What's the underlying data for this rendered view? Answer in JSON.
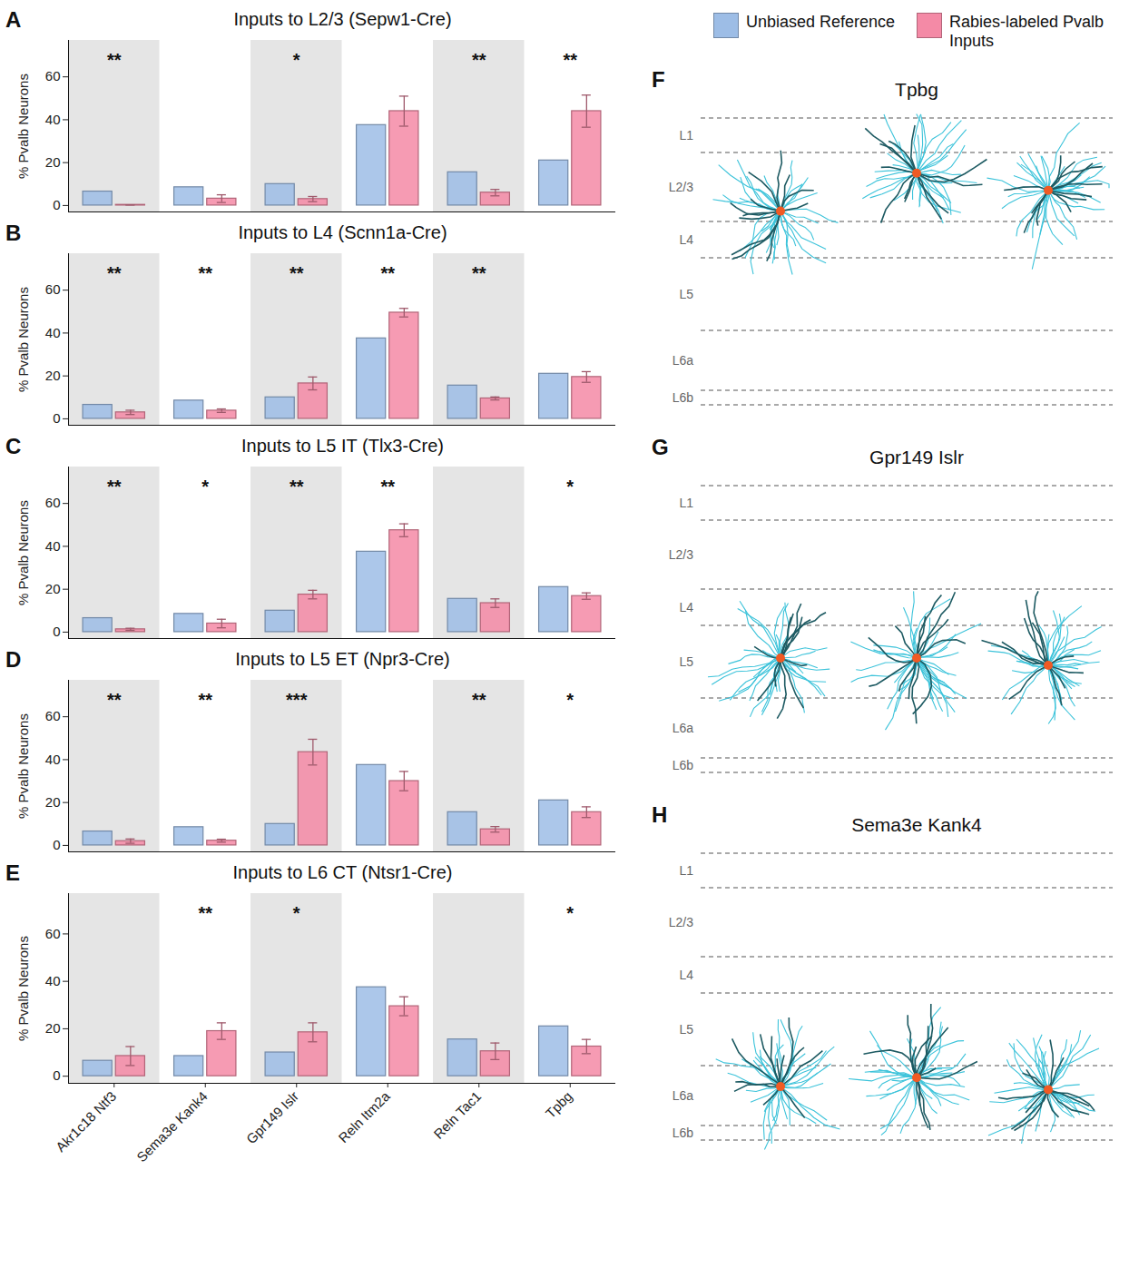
{
  "chart_data": [
    {
      "type": "bar",
      "panel": "A",
      "title": "Inputs to L2/3 (Sepw1-Cre)",
      "y_label": "% Pvalb Neurons",
      "categories": [
        "Akr1c18 Ntf3",
        "Sema3e Kank4",
        "Gpr149 Islr",
        "Reln Itm2a",
        "Reln Tac1",
        "Tpbg"
      ],
      "series": [
        {
          "name": "Unbiased Reference",
          "color": "#9dbde6",
          "values": [
            6.5,
            8.5,
            10,
            37.5,
            15.5,
            21
          ]
        },
        {
          "name": "Rabies-labeled Pvalb Inputs",
          "color": "#f48aa6",
          "values": [
            0.3,
            3.2,
            3,
            44,
            6,
            44
          ],
          "errors": [
            0,
            1.8,
            1.2,
            7,
            1.5,
            7.5
          ]
        }
      ],
      "annotations": [
        "**",
        null,
        "*",
        null,
        "**",
        "**"
      ],
      "ylim": [
        -3,
        77
      ],
      "yticks": [
        0,
        20,
        40,
        60
      ],
      "tick_labels": "y"
    },
    {
      "type": "bar",
      "panel": "B",
      "title": "Inputs to L4 (Scnn1a-Cre)",
      "y_label": "% Pvalb Neurons",
      "categories": [
        "Akr1c18 Ntf3",
        "Sema3e Kank4",
        "Gpr149 Islr",
        "Reln Itm2a",
        "Reln Tac1",
        "Tpbg"
      ],
      "series": [
        {
          "name": "Unbiased Reference",
          "color": "#9dbde6",
          "values": [
            6.5,
            8.5,
            10,
            37.5,
            15.5,
            21
          ]
        },
        {
          "name": "Rabies-labeled Pvalb Inputs",
          "color": "#f48aa6",
          "values": [
            3,
            3.8,
            16.5,
            49.5,
            9.5,
            19.5
          ],
          "errors": [
            1,
            0.8,
            3,
            2,
            0.7,
            2.5
          ]
        }
      ],
      "annotations": [
        "**",
        "**",
        "**",
        "**",
        "**",
        null
      ],
      "ylim": [
        -3,
        77
      ],
      "yticks": [
        0,
        20,
        40,
        60
      ],
      "tick_labels": "y"
    },
    {
      "type": "bar",
      "panel": "C",
      "title": "Inputs to L5 IT (Tlx3-Cre)",
      "y_label": "% Pvalb Neurons",
      "categories": [
        "Akr1c18 Ntf3",
        "Sema3e Kank4",
        "Gpr149 Islr",
        "Reln Itm2a",
        "Reln Tac1",
        "Tpbg"
      ],
      "series": [
        {
          "name": "Unbiased Reference",
          "color": "#9dbde6",
          "values": [
            6.5,
            8.5,
            10,
            37.5,
            15.5,
            21
          ]
        },
        {
          "name": "Rabies-labeled Pvalb Inputs",
          "color": "#f48aa6",
          "values": [
            1.3,
            4,
            17.5,
            47.5,
            13.5,
            16.8
          ],
          "errors": [
            0.5,
            2,
            2,
            3,
            2,
            1.5
          ]
        }
      ],
      "annotations": [
        "**",
        "*",
        "**",
        "**",
        null,
        "*"
      ],
      "ylim": [
        -3,
        77
      ],
      "yticks": [
        0,
        20,
        40,
        60
      ],
      "tick_labels": "y"
    },
    {
      "type": "bar",
      "panel": "D",
      "title": "Inputs to L5 ET (Npr3-Cre)",
      "y_label": "% Pvalb Neurons",
      "categories": [
        "Akr1c18 Ntf3",
        "Sema3e Kank4",
        "Gpr149 Islr",
        "Reln Itm2a",
        "Reln Tac1",
        "Tpbg"
      ],
      "series": [
        {
          "name": "Unbiased Reference",
          "color": "#9dbde6",
          "values": [
            6.5,
            8.5,
            10,
            37.5,
            15.5,
            21
          ]
        },
        {
          "name": "Rabies-labeled Pvalb Inputs",
          "color": "#f48aa6",
          "values": [
            2,
            2.2,
            43.5,
            30,
            7.5,
            15.5
          ],
          "errors": [
            1,
            0.7,
            6,
            4.5,
            1.3,
            2.5
          ]
        }
      ],
      "annotations": [
        "**",
        "**",
        "***",
        null,
        "**",
        "*"
      ],
      "ylim": [
        -3,
        77
      ],
      "yticks": [
        0,
        20,
        40,
        60
      ],
      "tick_labels": "y"
    },
    {
      "type": "bar",
      "panel": "E",
      "title": "Inputs to L6 CT (Ntsr1-Cre)",
      "y_label": "% Pvalb Neurons",
      "categories": [
        "Akr1c18 Ntf3",
        "Sema3e Kank4",
        "Gpr149 Islr",
        "Reln Itm2a",
        "Reln Tac1",
        "Tpbg"
      ],
      "series": [
        {
          "name": "Unbiased Reference",
          "color": "#9dbde6",
          "values": [
            6.5,
            8.5,
            10,
            37.5,
            15.5,
            21
          ]
        },
        {
          "name": "Rabies-labeled Pvalb Inputs",
          "color": "#f48aa6",
          "values": [
            8.5,
            19,
            18.5,
            29.5,
            10.5,
            12.5
          ],
          "errors": [
            4,
            3.5,
            4,
            4,
            3.5,
            3
          ]
        }
      ],
      "annotations": [
        null,
        "**",
        "*",
        null,
        null,
        "*"
      ],
      "ylim": [
        -3,
        77
      ],
      "yticks": [
        0,
        20,
        40,
        60
      ],
      "tick_labels": true
    }
  ],
  "legend": "top-right",
  "morphology_panels": [
    {
      "panel": "F",
      "title": "Tpbg",
      "layers": [
        "L1",
        "L2/3",
        "L4",
        "L5",
        "L6a",
        "L6b"
      ],
      "soma_layer": "L2/3"
    },
    {
      "panel": "G",
      "title": "Gpr149 Islr",
      "layers": [
        "L1",
        "L2/3",
        "L4",
        "L5",
        "L6a",
        "L6b"
      ],
      "soma_layer": "L5"
    },
    {
      "panel": "H",
      "title": "Sema3e Kank4",
      "layers": [
        "L1",
        "L2/3",
        "L4",
        "L5",
        "L6a",
        "L6b"
      ],
      "soma_layer": "L6a"
    }
  ]
}
